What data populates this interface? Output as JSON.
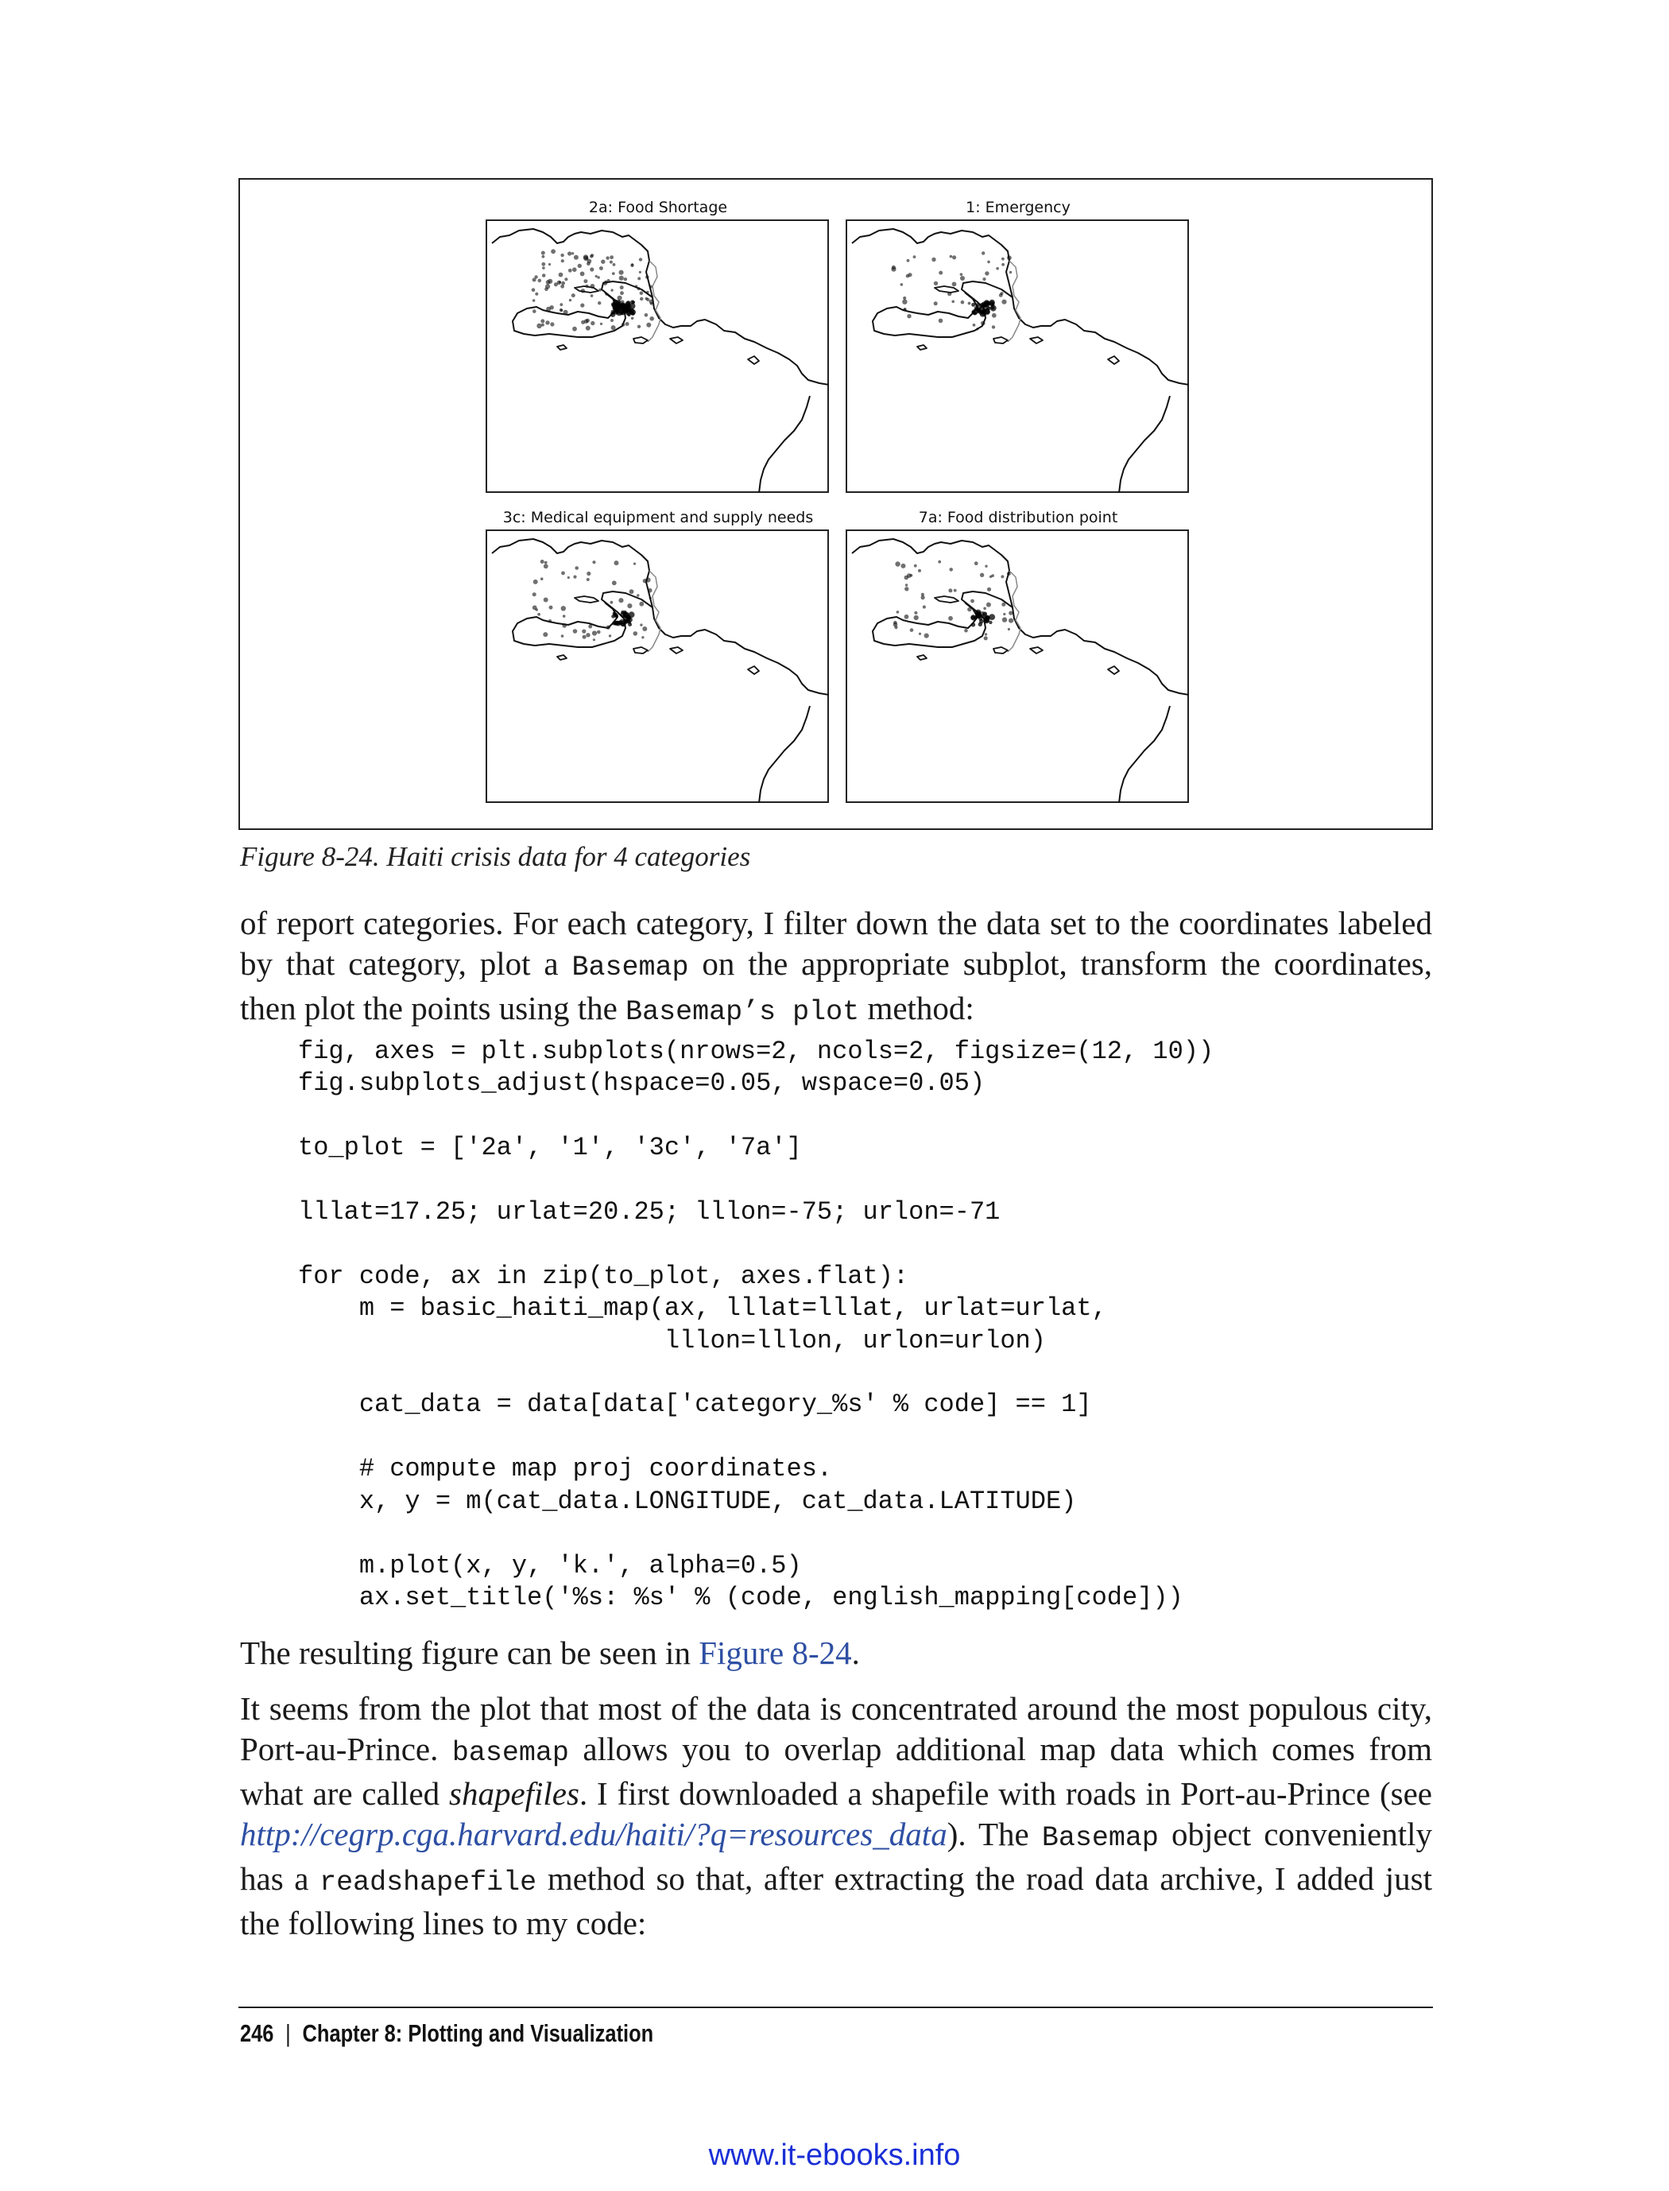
{
  "figure": {
    "panels": [
      {
        "title": "2a: Food Shortage"
      },
      {
        "title": "1: Emergency"
      },
      {
        "title": "3c: Medical equipment and supply needs"
      },
      {
        "title": "7a: Food distribution point"
      }
    ]
  },
  "caption": "Figure 8-24. Haiti crisis data for 4 categories",
  "para1": {
    "t1": "of report categories. For each category, I filter down the data set to the coordinates labeled by that category, plot a ",
    "c1": "Basemap",
    "t2": " on the appropriate subplot, transform the co­ordinates, then plot the points using the ",
    "c2": "Basemap’s plot",
    "t3": " method:"
  },
  "code": "fig, axes = plt.subplots(nrows=2, ncols=2, figsize=(12, 10))\nfig.subplots_adjust(hspace=0.05, wspace=0.05)\n\nto_plot = ['2a', '1', '3c', '7a']\n\nlllat=17.25; urlat=20.25; lllon=-75; urlon=-71\n\nfor code, ax in zip(to_plot, axes.flat):\n    m = basic_haiti_map(ax, lllat=lllat, urlat=urlat,\n                        lllon=lllon, urlon=urlon)\n\n    cat_data = data[data['category_%s' % code] == 1]\n\n    # compute map proj coordinates.\n    x, y = m(cat_data.LONGITUDE, cat_data.LATITUDE)\n\n    m.plot(x, y, 'k.', alpha=0.5)\n    ax.set_title('%s: %s' % (code, english_mapping[code]))",
  "para2": {
    "t1": "The resulting figure can be seen in ",
    "link": "Figure 8-24",
    "t2": "."
  },
  "para3": {
    "t1": "It seems from the plot that most of the data is concentrated around the most populous city, Port-au-Prince. ",
    "c1": "basemap",
    "t2": " allows you to overlap additional map data which comes from what are called ",
    "em": "shapefiles",
    "t3": ". I first downloaded a shapefile with roads in Port-au-Prince (see ",
    "link": "http://cegrp.cga.harvard.edu/haiti/?q=resources_data",
    "t4": "). The ",
    "c2": "Basemap",
    "t5": " object conveniently has a ",
    "c3": "readshapefile",
    "t6": " method so that, after extracting the road data archive, I added just the following lines to my code:"
  },
  "footer": {
    "page_number": "246",
    "separator": "|",
    "chapter": "Chapter 8: Plotting and Visualization"
  },
  "watermark": "www.it-ebooks.info"
}
